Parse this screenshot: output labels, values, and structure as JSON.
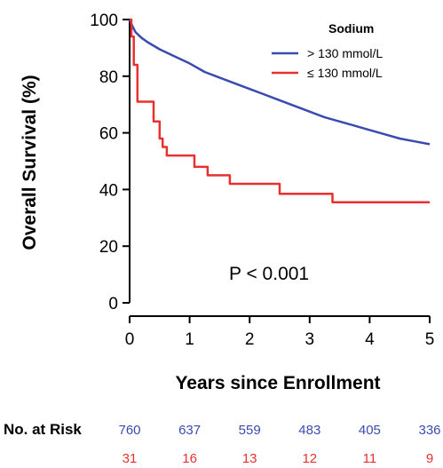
{
  "chart_data": {
    "type": "line",
    "xlabel": "Years since Enrollment",
    "ylabel": "Overall Survival (%)",
    "xlim": [
      0,
      5
    ],
    "ylim": [
      0,
      100
    ],
    "xticks": [
      "0",
      "1",
      "2",
      "3",
      "4",
      "5"
    ],
    "yticks": [
      "0",
      "20",
      "40",
      "60",
      "80",
      "100"
    ],
    "grid": false,
    "legend": {
      "title": "Sodium",
      "position": "top-right"
    },
    "annotation": "P < 0.001",
    "series": [
      {
        "name": "> 130 mmol/L",
        "color": "#3a4bb0",
        "step": false,
        "x": [
          0,
          0.05,
          0.1,
          0.2,
          0.3,
          0.5,
          0.75,
          1.0,
          1.25,
          1.5,
          1.75,
          2.0,
          2.25,
          2.5,
          2.75,
          3.0,
          3.25,
          3.5,
          3.75,
          4.0,
          4.25,
          4.5,
          4.75,
          5.0
        ],
        "y": [
          100,
          97.5,
          95.5,
          93.5,
          92,
          89.5,
          87,
          84.5,
          81.5,
          79.5,
          77.5,
          75.5,
          73.5,
          71.5,
          69.5,
          67.5,
          65.5,
          64,
          62.5,
          61,
          59.5,
          58,
          57,
          56
        ]
      },
      {
        "name": "≤ 130 mmol/L",
        "color": "#e8302f",
        "step": true,
        "x": [
          0,
          0.03,
          0.07,
          0.13,
          0.4,
          0.5,
          0.55,
          0.62,
          0.67,
          1.08,
          1.3,
          1.67,
          2.5,
          3.38,
          5.0
        ],
        "y": [
          100,
          94,
          84,
          71,
          64,
          58,
          55,
          52,
          52,
          48,
          45,
          42,
          38.5,
          35.5,
          35.5
        ]
      }
    ],
    "risk_table": {
      "title": "No. at Risk",
      "times": [
        0,
        1,
        2,
        3,
        4,
        5
      ],
      "rows": [
        {
          "color": "#3a4bb0",
          "values": [
            "760",
            "637",
            "559",
            "483",
            "405",
            "336"
          ]
        },
        {
          "color": "#e8302f",
          "values": [
            "31",
            "16",
            "13",
            "12",
            "11",
            "9"
          ]
        }
      ]
    }
  }
}
